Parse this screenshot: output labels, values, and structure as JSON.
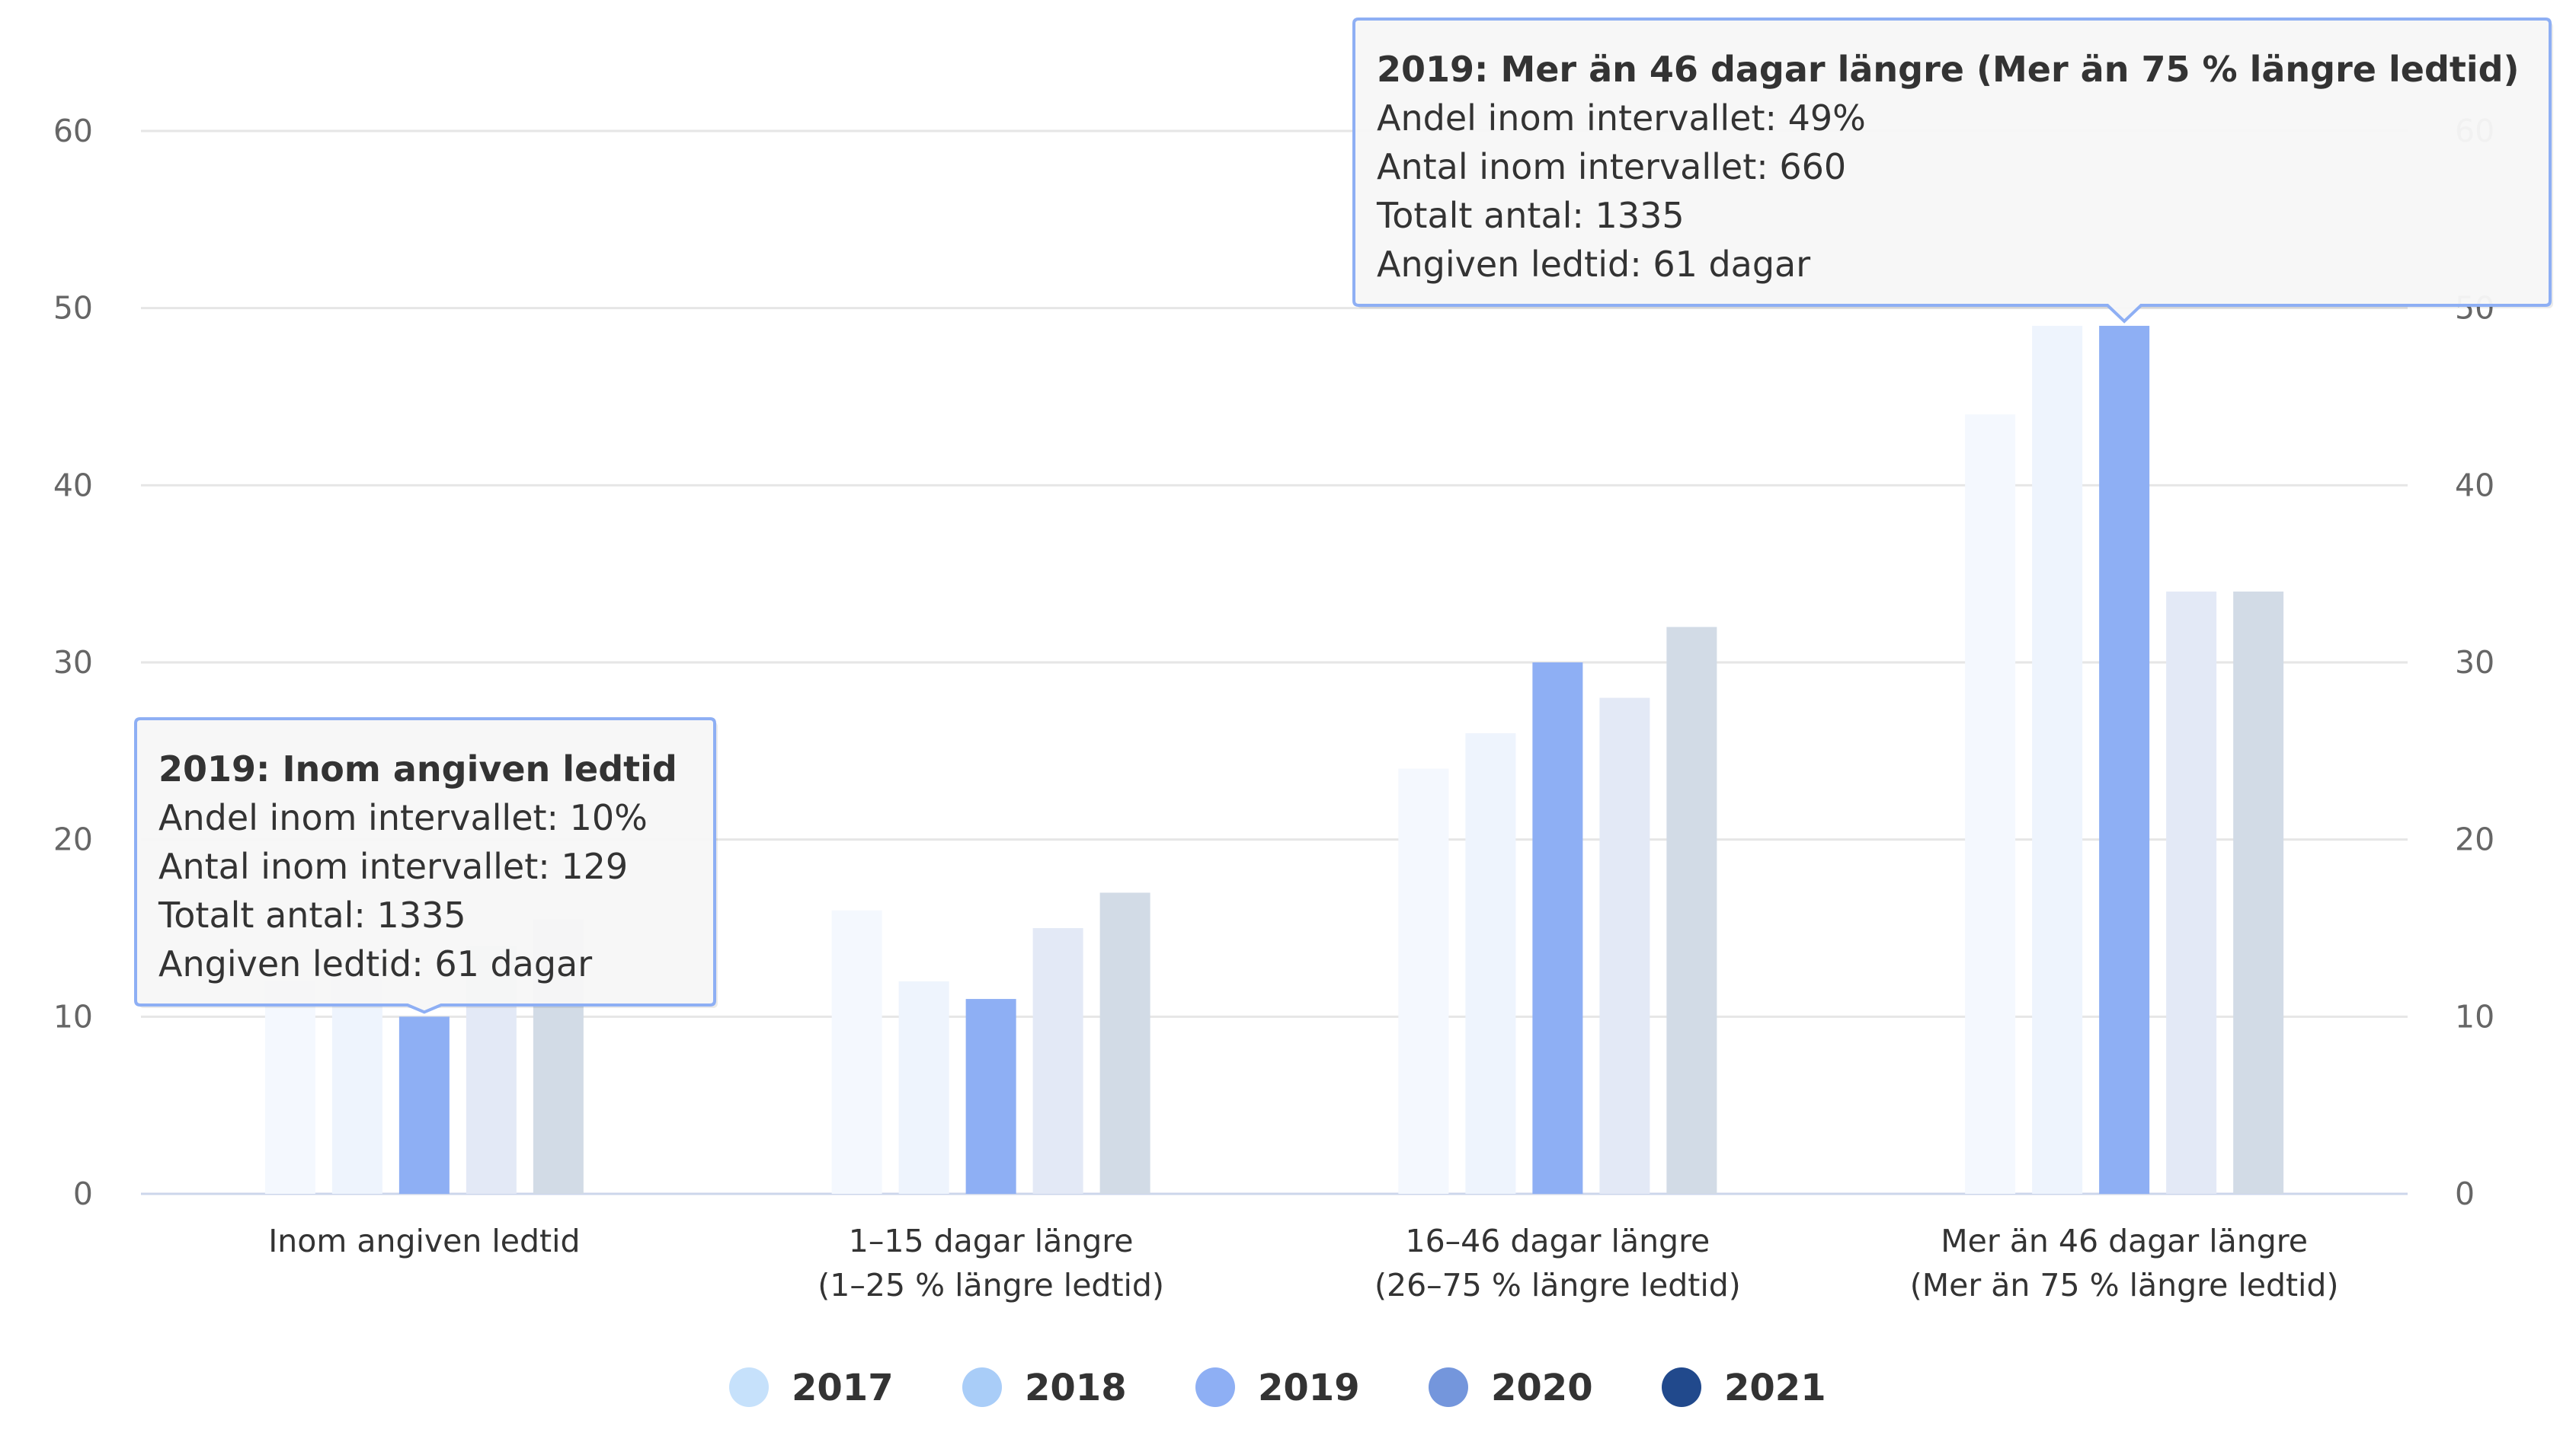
{
  "chart_data": {
    "type": "bar",
    "categories": [
      [
        "Inom angiven ledtid"
      ],
      [
        "1–15 dagar längre",
        "(1–25 % längre ledtid)"
      ],
      [
        "16–46 dagar längre",
        "(26–75 % längre ledtid)"
      ],
      [
        "Mer än 46 dagar längre",
        "(Mer än 75 % längre ledtid)"
      ]
    ],
    "series": [
      {
        "name": "2017",
        "color": "#c6e1fb",
        "values": [
          12,
          16,
          24,
          44
        ]
      },
      {
        "name": "2018",
        "color": "#a9cdf8",
        "values": [
          13,
          12,
          26,
          49
        ]
      },
      {
        "name": "2019",
        "color": "#8eaff4",
        "values": [
          10,
          11,
          30,
          49
        ]
      },
      {
        "name": "2020",
        "color": "#7496dc",
        "values": [
          14,
          15,
          28,
          34
        ]
      },
      {
        "name": "2021",
        "color": "#21498c",
        "values": [
          15.5,
          17,
          32,
          34
        ]
      }
    ],
    "faded_colors": [
      "#f4f8fe",
      "#eef4fd",
      "#e8eefa",
      "#e3e9f6",
      "#d2dbe6"
    ],
    "y_ticks": [
      "0",
      "10",
      "20",
      "30",
      "40",
      "50",
      "60"
    ],
    "y_ticks_right": [
      "0",
      "10",
      "20",
      "30",
      "40",
      "50",
      "60"
    ],
    "ylim": [
      0,
      60
    ],
    "grid": true,
    "legend_position": "bottom-center",
    "tooltips": [
      {
        "title": "2019: Inom angiven ledtid",
        "lines": [
          "Andel inom intervallet: 10%",
          "Antal inom intervallet: 129",
          "Totalt antal: 1335",
          "Angiven ledtid: 61 dagar"
        ],
        "category_index": 0,
        "series_index": 2
      },
      {
        "title": "2019: Mer än 46 dagar längre (Mer än 75 % längre ledtid)",
        "lines": [
          "Andel inom intervallet: 49%",
          "Antal inom intervallet: 660",
          "Totalt antal: 1335",
          "Angiven ledtid: 61 dagar"
        ],
        "category_index": 3,
        "series_index": 2
      }
    ]
  }
}
